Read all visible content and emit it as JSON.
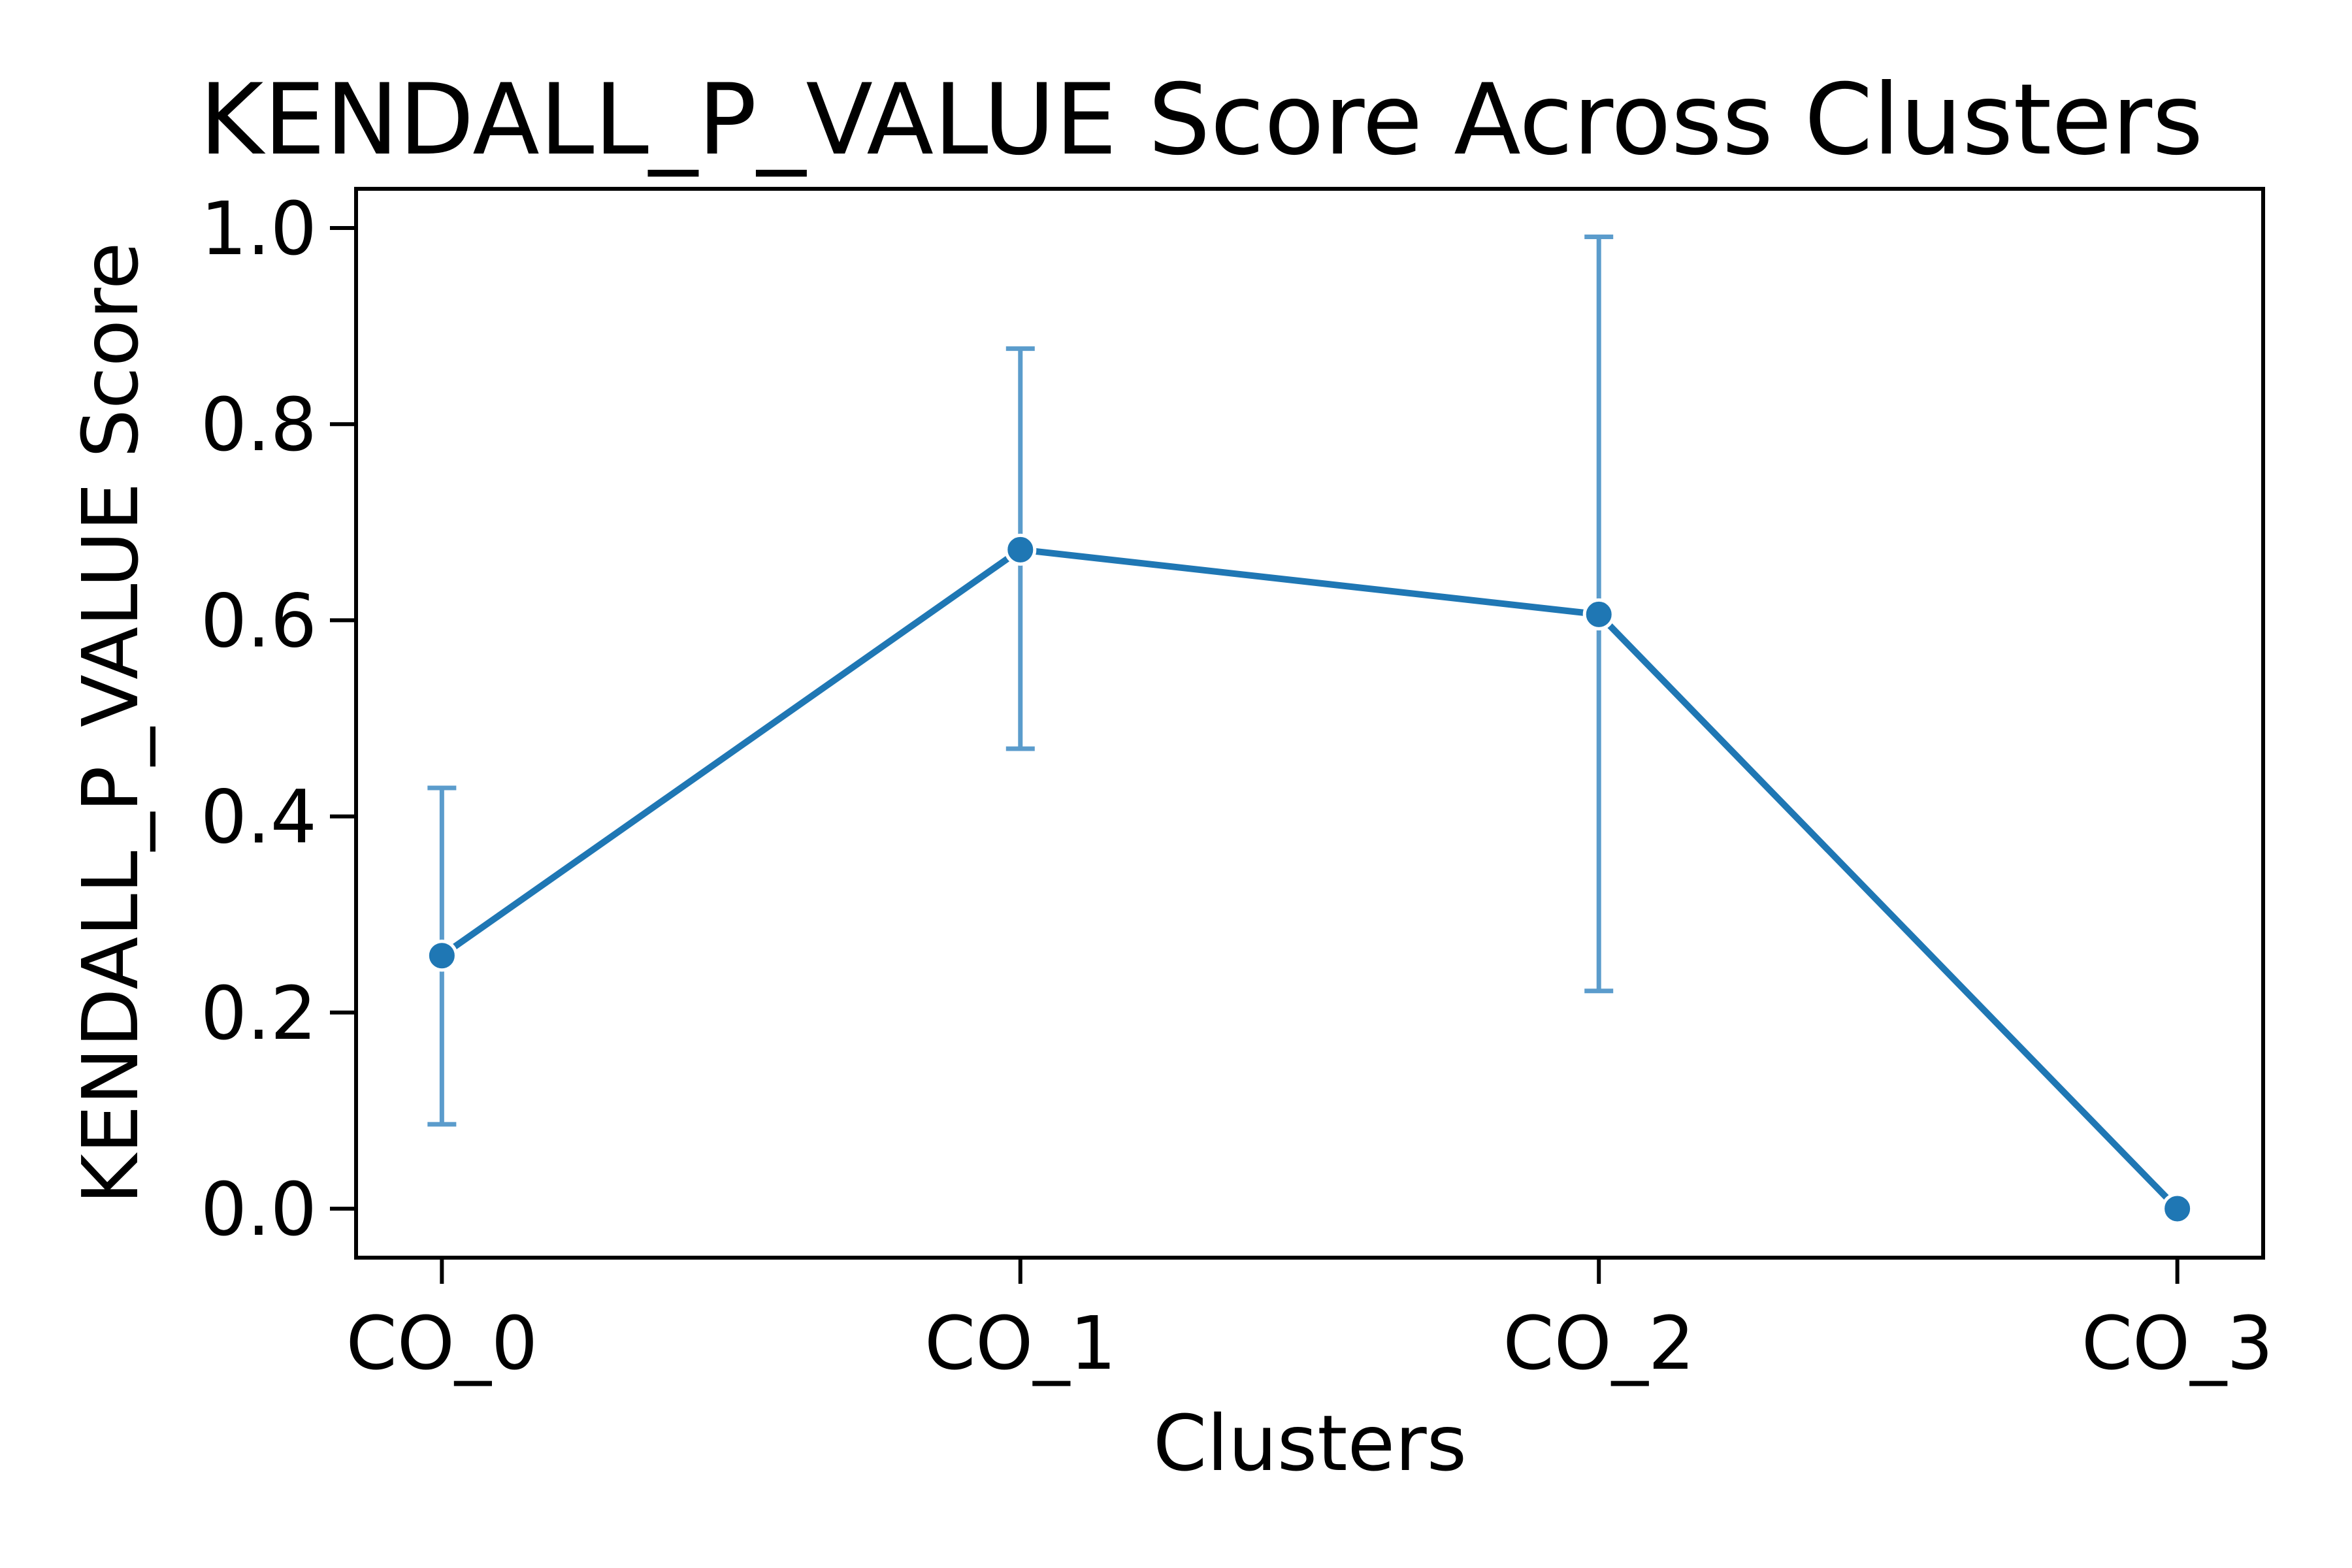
{
  "chart_data": {
    "type": "line",
    "title": "KENDALL_P_VALUE Score Across Clusters",
    "xlabel": "Clusters",
    "ylabel": "KENDALL_P_VALUE Score",
    "categories": [
      "CO_0",
      "CO_1",
      "CO_2",
      "CO_3"
    ],
    "series": [
      {
        "values": [
          0.258,
          0.672,
          0.606,
          0.0
        ],
        "err_low": [
          0.086,
          0.469,
          0.222,
          0.0
        ],
        "err_high": [
          0.429,
          0.877,
          0.991,
          0.0
        ],
        "color": "#1f77b4",
        "marker": "circle"
      }
    ],
    "ylim": [
      -0.05,
      1.04
    ],
    "yticks": [
      0.0,
      0.2,
      0.4,
      0.6,
      0.8,
      1.0
    ],
    "ytick_labels": [
      "0.0",
      "0.2",
      "0.4",
      "0.6",
      "0.8",
      "1.0"
    ],
    "grid": false,
    "legend": "none",
    "errorbar_color": "#5b9ccc",
    "axis_color": "#000000"
  }
}
